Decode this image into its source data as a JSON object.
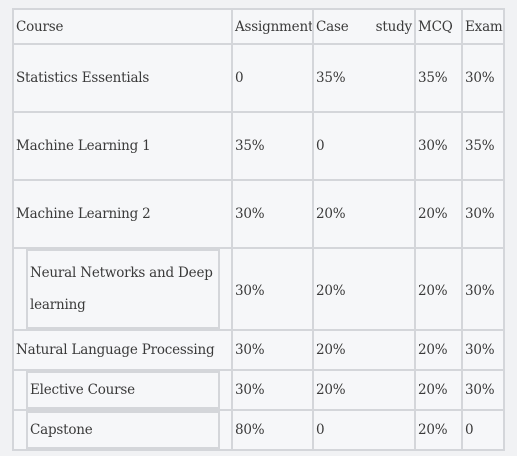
{
  "table": {
    "headers": {
      "course": "Course",
      "assignment": "Assignment",
      "case_study_word1": "Case",
      "case_study_word2": "study",
      "mcq": "MCQ",
      "exam": "Exam"
    },
    "rows": [
      {
        "course": "Statistics Essentials",
        "assignment": "0",
        "case_study": "35%",
        "mcq": "35%",
        "exam": "30%"
      },
      {
        "course": "Machine Learning 1",
        "assignment": "35%",
        "case_study": "0",
        "mcq": "30%",
        "exam": "35%"
      },
      {
        "course": "Machine Learning 2",
        "assignment": "30%",
        "case_study": "20%",
        "mcq": "20%",
        "exam": "30%"
      },
      {
        "course": "Neural Networks and Deep learning",
        "assignment": "30%",
        "case_study": "20%",
        "mcq": "20%",
        "exam": "30%"
      },
      {
        "course": "Natural Language Processing",
        "assignment": "30%",
        "case_study": "20%",
        "mcq": "20%",
        "exam": "30%"
      },
      {
        "course": "Elective Course",
        "assignment": "30%",
        "case_study": "20%",
        "mcq": "20%",
        "exam": "30%"
      },
      {
        "course": "Capstone",
        "assignment": "80%",
        "case_study": "0",
        "mcq": "20%",
        "exam": "0"
      }
    ]
  }
}
